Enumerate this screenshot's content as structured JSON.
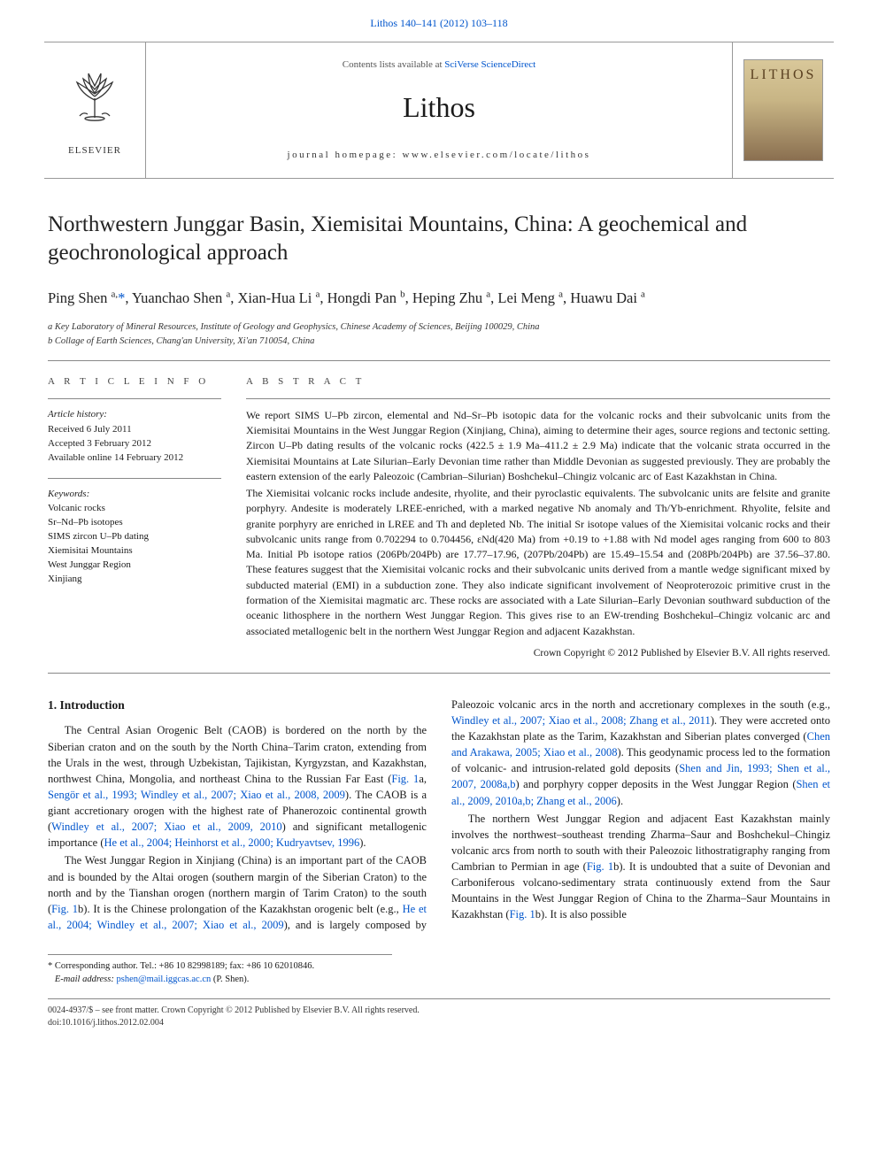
{
  "top_link": {
    "citation": "Lithos 140–141 (2012) 103–118",
    "href_label": "Lithos 140–141 (2012) 103–118"
  },
  "banner": {
    "contents_prefix": "Contents lists available at ",
    "contents_link": "SciVerse ScienceDirect",
    "journal_name": "Lithos",
    "homepage_prefix": "journal homepage: ",
    "homepage_url": "www.elsevier.com/locate/lithos",
    "elsevier_brand": "ELSEVIER",
    "cover_title": "LITHOS"
  },
  "article": {
    "title": "Northwestern Junggar Basin, Xiemisitai Mountains, China: A geochemical and geochronological approach",
    "authors_html": "Ping Shen <sup>a,</sup><a href=\"#\">*</a>, Yuanchao Shen <sup>a</sup>, Xian-Hua Li <sup>a</sup>, Hongdi Pan <sup>b</sup>, Heping Zhu <sup>a</sup>, Lei Meng <sup>a</sup>, Huawu Dai <sup>a</sup>",
    "affiliations": [
      "a Key Laboratory of Mineral Resources, Institute of Geology and Geophysics, Chinese Academy of Sciences, Beijing 100029, China",
      "b Collage of Earth Sciences, Chang'an University, Xi'an 710054, China"
    ]
  },
  "info": {
    "section_label": "A R T I C L E   I N F O",
    "history_title": "Article history:",
    "history": [
      "Received 6 July 2011",
      "Accepted 3 February 2012",
      "Available online 14 February 2012"
    ],
    "keywords_title": "Keywords:",
    "keywords": [
      "Volcanic rocks",
      "Sr–Nd–Pb isotopes",
      "SIMS zircon U–Pb dating",
      "Xiemisitai Mountains",
      "West Junggar Region",
      "Xinjiang"
    ]
  },
  "abstract": {
    "section_label": "A B S T R A C T",
    "paragraphs": [
      "We report SIMS U–Pb zircon, elemental and Nd–Sr–Pb isotopic data for the volcanic rocks and their subvolcanic units from the Xiemisitai Mountains in the West Junggar Region (Xinjiang, China), aiming to determine their ages, source regions and tectonic setting. Zircon U–Pb dating results of the volcanic rocks (422.5 ± 1.9 Ma–411.2 ± 2.9 Ma) indicate that the volcanic strata occurred in the Xiemisitai Mountains at Late Silurian–Early Devonian time rather than Middle Devonian as suggested previously. They are probably the eastern extension of the early Paleozoic (Cambrian–Silurian) Boshchekul–Chingiz volcanic arc of East Kazakhstan in China.",
      "The Xiemisitai volcanic rocks include andesite, rhyolite, and their pyroclastic equivalents. The subvolcanic units are felsite and granite porphyry. Andesite is moderately LREE-enriched, with a marked negative Nb anomaly and Th/Yb-enrichment. Rhyolite, felsite and granite porphyry are enriched in LREE and Th and depleted Nb. The initial Sr isotope values of the Xiemisitai volcanic rocks and their subvolcanic units range from 0.702294 to 0.704456, εNd(420 Ma) from +0.19 to +1.88 with Nd model ages ranging from 600 to 803 Ma. Initial Pb isotope ratios (206Pb/204Pb) are 17.77–17.96, (207Pb/204Pb) are 15.49–15.54 and (208Pb/204Pb) are 37.56–37.80. These features suggest that the Xiemisitai volcanic rocks and their subvolcanic units derived from a mantle wedge significant mixed by subducted material (EMI) in a subduction zone. They also indicate significant involvement of Neoproterozoic primitive crust in the formation of the Xiemisitai magmatic arc. These rocks are associated with a Late Silurian–Early Devonian southward subduction of the oceanic lithosphere in the northern West Junggar Region. This gives rise to an EW-trending Boshchekul–Chingiz volcanic arc and associated metallogenic belt in the northern West Junggar Region and adjacent Kazakhstan."
    ],
    "copyright": "Crown Copyright © 2012 Published by Elsevier B.V. All rights reserved."
  },
  "intro": {
    "heading": "1. Introduction",
    "paragraphs_html": [
      "The Central Asian Orogenic Belt (CAOB) is bordered on the north by the Siberian craton and on the south by the North China–Tarim craton, extending from the Urals in the west, through Uzbekistan, Tajikistan, Kyrgyzstan, and Kazakhstan, northwest China, Mongolia, and northeast China to the Russian Far East (<a href=\"#\">Fig. 1</a>a, <a href=\"#\">Sengör et al., 1993; Windley et al., 2007; Xiao et al., 2008, 2009</a>). The CAOB is a giant accretionary orogen with the highest rate of Phanerozoic continental growth (<a href=\"#\">Windley et al., 2007; Xiao et al., 2009, 2010</a>) and significant metallogenic importance (<a href=\"#\">He et al., 2004; Heinhorst et al., 2000; Kudryavtsev, 1996</a>).",
      "The West Junggar Region in Xinjiang (China) is an important part of the CAOB and is bounded by the Altai orogen (southern margin of the Siberian Craton) to the north and by the Tianshan orogen (northern margin of Tarim Craton) to the south (<a href=\"#\">Fig. 1</a>b). It is the Chinese prolongation of the Kazakhstan orogenic belt (e.g., <a href=\"#\">He et al., 2004; Windley et al., 2007; Xiao et al., 2009</a>), and is largely composed by Paleozoic volcanic arcs in the north and accretionary complexes in the south (e.g., <a href=\"#\">Windley et al., 2007; Xiao et al., 2008; Zhang et al., 2011</a>). They were accreted onto the Kazakhstan plate as the Tarim, Kazakhstan and Siberian plates converged (<a href=\"#\">Chen and Arakawa, 2005; Xiao et al., 2008</a>). This geodynamic process led to the formation of volcanic- and intrusion-related gold deposits (<a href=\"#\">Shen and Jin, 1993; Shen et al., 2007, 2008a,b</a>) and porphyry copper deposits in the West Junggar Region (<a href=\"#\">Shen et al., 2009, 2010a,b; Zhang et al., 2006</a>).",
      "The northern West Junggar Region and adjacent East Kazakhstan mainly involves the northwest–southeast trending Zharma–Saur and Boshchekul–Chingiz volcanic arcs from north to south with their Paleozoic lithostratigraphy ranging from Cambrian to Permian in age (<a href=\"#\">Fig. 1</a>b). It is undoubted that a suite of Devonian and Carboniferous volcano-sedimentary strata continuously extend from the Saur Mountains in the West Junggar Region of China to the Zharma–Saur Mountains in Kazakhstan (<a href=\"#\">Fig. 1</a>b). It is also possible"
    ]
  },
  "corr": {
    "star": "*",
    "text": "Corresponding author. Tel.: +86 10 82998189; fax: +86 10 62010846.",
    "email_label": "E-mail address:",
    "email": "pshen@mail.iggcas.ac.cn",
    "email_suffix": "(P. Shen)."
  },
  "bottom": {
    "line1": "0024-4937/$ – see front matter. Crown Copyright © 2012 Published by Elsevier B.V. All rights reserved.",
    "line2": "doi:10.1016/j.lithos.2012.02.004"
  },
  "colors": {
    "link": "#0055cc",
    "rule": "#888888",
    "text": "#1a1a1a"
  }
}
